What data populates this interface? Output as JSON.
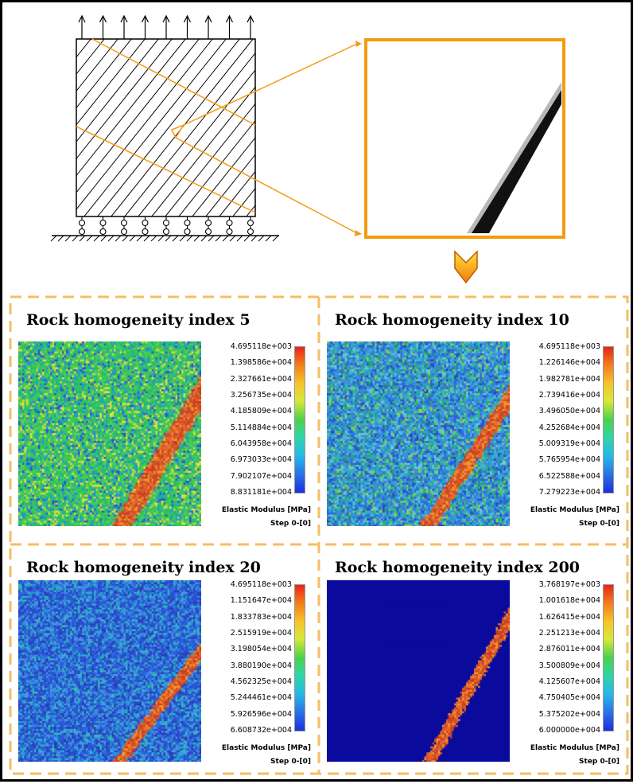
{
  "panels": [
    {
      "title": "Rock homogeneity index 5",
      "ticks": [
        "4.695118e+003",
        "1.398586e+004",
        "2.327661e+004",
        "3.256735e+004",
        "4.185809e+004",
        "5.114884e+004",
        "6.043958e+004",
        "6.973033e+004",
        "7.902107e+004",
        "8.831181e+004"
      ],
      "unit_label": "Elastic Modulus [MPa]",
      "step_label": "Step 0-[0]"
    },
    {
      "title": "Rock homogeneity index 10",
      "ticks": [
        "4.695118e+003",
        "1.226146e+004",
        "1.982781e+004",
        "2.739416e+004",
        "3.496050e+004",
        "4.252684e+004",
        "5.009319e+004",
        "5.765954e+004",
        "6.522588e+004",
        "7.279223e+004"
      ],
      "unit_label": "Elastic Modulus [MPa]",
      "step_label": "Step 0-[0]"
    },
    {
      "title": "Rock homogeneity index 20",
      "ticks": [
        "4.695118e+003",
        "1.151647e+004",
        "1.833783e+004",
        "2.515919e+004",
        "3.198054e+004",
        "3.880190e+004",
        "4.562325e+004",
        "5.244461e+004",
        "5.926596e+004",
        "6.608732e+004"
      ],
      "unit_label": "Elastic Modulus [MPa]",
      "step_label": "Step 0-[0]"
    },
    {
      "title": "Rock homogeneity index 200",
      "ticks": [
        "3.768197e+003",
        "1.001618e+004",
        "1.626415e+004",
        "2.251213e+004",
        "2.876011e+004",
        "3.500809e+004",
        "4.125607e+004",
        "4.750405e+004",
        "5.375202e+004",
        "6.000000e+004"
      ],
      "unit_label": "Elastic Modulus [MPa]",
      "step_label": "Step 0-[0]"
    }
  ],
  "colors": {
    "accent_orange": "#f39c12",
    "dash_orange": "#f5be63",
    "fracture_red": "#d9532c"
  }
}
